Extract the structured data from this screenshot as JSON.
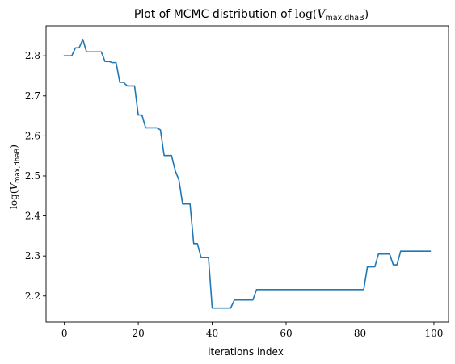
{
  "chart_data": {
    "type": "line",
    "title": {
      "prefix": "Plot of MCMC distribution of ",
      "fn": "log",
      "open": "(",
      "var": "V",
      "sub": "max,dhaB",
      "close": ")"
    },
    "xlabel": "iterations index",
    "ylabel": {
      "fn": "log",
      "open": "(",
      "var": "V",
      "sub": "max,dhaB",
      "close": ")"
    },
    "xlim": [
      -4.95,
      103.95
    ],
    "ylim": [
      2.135,
      2.875
    ],
    "xticks": [
      0,
      20,
      40,
      60,
      80,
      100
    ],
    "xtick_labels": [
      "0",
      "20",
      "40",
      "60",
      "80",
      "100"
    ],
    "yticks": [
      2.2,
      2.3,
      2.4,
      2.5,
      2.6,
      2.7,
      2.8
    ],
    "ytick_labels": [
      "2.2",
      "2.3",
      "2.4",
      "2.5",
      "2.6",
      "2.7",
      "2.8"
    ],
    "grid": false,
    "line_color": "#1f77b4",
    "series": [
      {
        "x": [
          0,
          1,
          2,
          3,
          4,
          5,
          6,
          7,
          8,
          9,
          10,
          11,
          12,
          13,
          14,
          15,
          16,
          17,
          18,
          19,
          20,
          21,
          22,
          23,
          24,
          25,
          26,
          27,
          28,
          29,
          30,
          31,
          32,
          33,
          34,
          35,
          36,
          37,
          38,
          39,
          40,
          41,
          42,
          43,
          44,
          45,
          46,
          47,
          48,
          49,
          50,
          51,
          52,
          53,
          54,
          55,
          56,
          57,
          58,
          59,
          60,
          61,
          62,
          63,
          64,
          65,
          66,
          67,
          68,
          69,
          70,
          71,
          72,
          73,
          74,
          75,
          76,
          77,
          78,
          79,
          80,
          81,
          82,
          83,
          84,
          85,
          86,
          87,
          88,
          89,
          90,
          91,
          92,
          93,
          94,
          95,
          96,
          97,
          98,
          99
        ],
        "y": [
          2.8,
          2.8,
          2.8,
          2.82,
          2.82,
          2.841,
          2.81,
          2.81,
          2.81,
          2.81,
          2.81,
          2.786,
          2.786,
          2.783,
          2.783,
          2.734,
          2.734,
          2.725,
          2.725,
          2.725,
          2.652,
          2.652,
          2.62,
          2.62,
          2.62,
          2.62,
          2.615,
          2.551,
          2.551,
          2.551,
          2.513,
          2.49,
          2.43,
          2.43,
          2.43,
          2.331,
          2.331,
          2.296,
          2.296,
          2.296,
          2.17,
          2.17,
          2.17,
          2.17,
          2.17,
          2.17,
          2.19,
          2.19,
          2.19,
          2.19,
          2.19,
          2.19,
          2.216,
          2.216,
          2.216,
          2.216,
          2.216,
          2.216,
          2.216,
          2.216,
          2.216,
          2.216,
          2.216,
          2.216,
          2.216,
          2.216,
          2.216,
          2.216,
          2.216,
          2.216,
          2.216,
          2.216,
          2.216,
          2.216,
          2.216,
          2.216,
          2.216,
          2.216,
          2.216,
          2.216,
          2.216,
          2.216,
          2.273,
          2.273,
          2.273,
          2.305,
          2.305,
          2.305,
          2.305,
          2.278,
          2.278,
          2.312,
          2.312,
          2.312,
          2.312,
          2.312,
          2.312,
          2.312,
          2.312,
          2.312
        ]
      }
    ]
  }
}
